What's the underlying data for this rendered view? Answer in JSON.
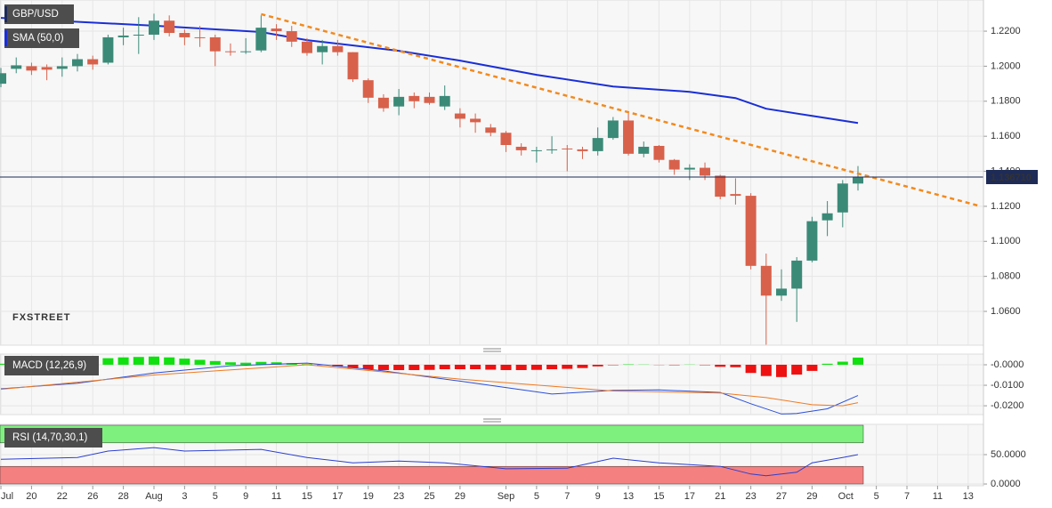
{
  "chart_data": [
    {
      "type": "candlestick",
      "title": "GBP/USD",
      "watermark": "FXSTREET",
      "up_color": "#3b8a78",
      "down_color": "#d8614b",
      "x": [
        0,
        1,
        2,
        3,
        4,
        5,
        6,
        7,
        8,
        9,
        10,
        11,
        12,
        13,
        14,
        15,
        16,
        17,
        18,
        19,
        20,
        21,
        22,
        23,
        24,
        25,
        26,
        27,
        28,
        29,
        30,
        31,
        32,
        33,
        34,
        35,
        36,
        37,
        38,
        39,
        40,
        41,
        42,
        43,
        44,
        45,
        46,
        47,
        48,
        49,
        50,
        51,
        52,
        53,
        54,
        55,
        56
      ],
      "open": [
        1.19,
        1.1985,
        1.2,
        1.1995,
        1.1985,
        1.2,
        1.204,
        1.202,
        1.2165,
        1.2175,
        1.218,
        1.226,
        1.219,
        1.2165,
        1.2165,
        1.2085,
        1.208,
        1.209,
        1.2215,
        1.22,
        1.214,
        1.208,
        1.2115,
        1.208,
        1.192,
        1.182,
        1.177,
        1.183,
        1.1825,
        1.177,
        1.173,
        1.17,
        1.165,
        1.162,
        1.154,
        1.1515,
        1.152,
        1.153,
        1.1525,
        1.1515,
        1.159,
        1.169,
        1.15,
        1.1545,
        1.1465,
        1.141,
        1.142,
        1.1375,
        1.127,
        1.126,
        1.086,
        1.069,
        1.073,
        1.089,
        1.112,
        1.1165,
        1.133
      ],
      "high": [
        1.199,
        1.205,
        1.202,
        1.201,
        1.205,
        1.207,
        1.206,
        1.218,
        1.222,
        1.228,
        1.23,
        1.229,
        1.221,
        1.223,
        1.218,
        1.213,
        1.216,
        1.229,
        1.224,
        1.223,
        1.216,
        1.215,
        1.215,
        1.208,
        1.193,
        1.184,
        1.187,
        1.185,
        1.185,
        1.189,
        1.176,
        1.173,
        1.167,
        1.163,
        1.156,
        1.154,
        1.16,
        1.155,
        1.154,
        1.165,
        1.171,
        1.174,
        1.157,
        1.155,
        1.147,
        1.144,
        1.145,
        1.138,
        1.136,
        1.1275,
        1.093,
        1.084,
        1.091,
        1.114,
        1.123,
        1.135,
        1.143
      ],
      "low": [
        1.188,
        1.196,
        1.195,
        1.192,
        1.194,
        1.197,
        1.198,
        1.201,
        1.212,
        1.207,
        1.215,
        1.217,
        1.212,
        1.211,
        1.2,
        1.206,
        1.207,
        1.208,
        1.215,
        1.211,
        1.206,
        1.201,
        1.206,
        1.191,
        1.179,
        1.174,
        1.172,
        1.176,
        1.178,
        1.175,
        1.165,
        1.162,
        1.16,
        1.151,
        1.149,
        1.145,
        1.15,
        1.14,
        1.147,
        1.149,
        1.158,
        1.149,
        1.148,
        1.145,
        1.138,
        1.135,
        1.135,
        1.124,
        1.121,
        1.084,
        1.041,
        1.066,
        1.054,
        1.088,
        1.103,
        1.108,
        1.129
      ],
      "close": [
        1.196,
        1.2005,
        1.1975,
        1.198,
        1.2,
        1.204,
        1.201,
        1.2165,
        1.2175,
        1.218,
        1.226,
        1.219,
        1.2165,
        1.216,
        1.2085,
        1.208,
        1.2085,
        1.222,
        1.22,
        1.214,
        1.2075,
        1.2115,
        1.208,
        1.1925,
        1.182,
        1.176,
        1.1825,
        1.18,
        1.179,
        1.183,
        1.17,
        1.168,
        1.162,
        1.155,
        1.152,
        1.152,
        1.1525,
        1.1525,
        1.1515,
        1.159,
        1.169,
        1.15,
        1.154,
        1.1465,
        1.141,
        1.142,
        1.1375,
        1.1255,
        1.126,
        1.086,
        1.069,
        1.073,
        1.089,
        1.1115,
        1.116,
        1.133,
        1.1367
      ],
      "sma": {
        "label": "SMA (50,0)",
        "color": "#1a2fd6",
        "x": [
          0,
          10,
          17,
          20,
          26,
          30,
          35,
          40,
          45,
          48,
          50,
          53,
          56
        ],
        "values": [
          1.2276,
          1.2231,
          1.2195,
          1.2149,
          1.2088,
          1.2032,
          1.1951,
          1.1884,
          1.1854,
          1.1818,
          1.1757,
          1.1716,
          1.1676
        ]
      },
      "trendline": {
        "color": "#f28a1e",
        "x": [
          17,
          63.9
        ],
        "values": [
          1.2297,
          1.1203
        ]
      },
      "last_price": {
        "value": 1.13671,
        "label": "1.136710",
        "color": "#1e2b57"
      },
      "xlim": [
        -0.06,
        64.2
      ],
      "ylim": [
        1.0407,
        1.2378
      ],
      "yticks": [
        {
          "value": 1.22,
          "label": "1.2200"
        },
        {
          "value": 1.2,
          "label": "1.2000"
        },
        {
          "value": 1.18,
          "label": "1.1800"
        },
        {
          "value": 1.16,
          "label": "1.1600"
        },
        {
          "value": 1.14,
          "label": "1.1400"
        },
        {
          "value": 1.12,
          "label": "1.1200"
        },
        {
          "value": 1.1,
          "label": "1.1000"
        },
        {
          "value": 1.08,
          "label": "1.0800"
        },
        {
          "value": 1.06,
          "label": "1.0600"
        }
      ]
    },
    {
      "type": "macd",
      "title": "MACD (12,26,9)",
      "up_color": "#10e010",
      "down_color": "#ee1111",
      "histogram": {
        "x": [
          0,
          1,
          2,
          3,
          4,
          5,
          6,
          7,
          8,
          9,
          10,
          11,
          12,
          13,
          14,
          15,
          16,
          17,
          18,
          19,
          20,
          21,
          22,
          23,
          24,
          25,
          26,
          27,
          28,
          29,
          30,
          31,
          32,
          33,
          34,
          35,
          36,
          37,
          38,
          39,
          40,
          41,
          42,
          43,
          44,
          45,
          46,
          47,
          48,
          49,
          50,
          51,
          52,
          53,
          54,
          55,
          56
        ],
        "values": [
          0.0005,
          0.0008,
          0.0012,
          0.0015,
          0.0018,
          0.0022,
          0.0026,
          0.0032,
          0.0036,
          0.0038,
          0.004,
          0.0036,
          0.003,
          0.0024,
          0.0018,
          0.0012,
          0.001,
          0.0014,
          0.0012,
          0.0008,
          0.0003,
          -0.0002,
          -0.0008,
          -0.0016,
          -0.0022,
          -0.0026,
          -0.0026,
          -0.0026,
          -0.0025,
          -0.0022,
          -0.0022,
          -0.0022,
          -0.0024,
          -0.0026,
          -0.0026,
          -0.0025,
          -0.0022,
          -0.002,
          -0.0016,
          -0.0008,
          -0.0002,
          0.0002,
          0.0001,
          -0.0001,
          -0.0002,
          0.0001,
          -0.0002,
          -0.001,
          -0.0012,
          -0.004,
          -0.0055,
          -0.006,
          -0.0048,
          -0.003,
          0.0005,
          0.0015,
          0.0035
        ]
      },
      "lines": [
        {
          "color": "#2b4fd8",
          "x": [
            0,
            5,
            10,
            15,
            20,
            25,
            30,
            36,
            40,
            43,
            47,
            49,
            51,
            52,
            54,
            56
          ],
          "values": [
            -0.0117,
            -0.009,
            -0.004,
            -0.0005,
            0.0008,
            -0.003,
            -0.008,
            -0.0143,
            -0.0125,
            -0.0123,
            -0.0135,
            -0.019,
            -0.024,
            -0.0238,
            -0.0215,
            -0.015
          ]
        },
        {
          "color": "#f07a20",
          "x": [
            0,
            10,
            20,
            30,
            40,
            47,
            50,
            53,
            55,
            56
          ],
          "values": [
            -0.012,
            -0.005,
            0.0,
            -0.007,
            -0.0128,
            -0.0138,
            -0.016,
            -0.0195,
            -0.02,
            -0.0185
          ]
        }
      ],
      "xlim": [
        -0.06,
        64.2
      ],
      "ylim": [
        -0.0243,
        0.0052
      ],
      "yticks": [
        {
          "value": 0,
          "label": "-0.0000"
        },
        {
          "value": -0.01,
          "label": "-0.0100"
        },
        {
          "value": -0.02,
          "label": "-0.0200"
        }
      ]
    },
    {
      "type": "rsi",
      "title": "RSI (14,70,30,1)",
      "bands": [
        {
          "from": 70,
          "to": 100,
          "color": "#7ef07e"
        },
        {
          "from": 0,
          "to": 30,
          "color": "#f58080"
        }
      ],
      "line": {
        "color": "#2b3fd0",
        "x": [
          0,
          5,
          7,
          10,
          12,
          17,
          20,
          23,
          26,
          29,
          33,
          37,
          40,
          43,
          47,
          49,
          50,
          52,
          53,
          55,
          56
        ],
        "values": [
          42,
          45,
          56,
          62,
          56,
          59,
          45,
          36,
          39,
          36,
          26,
          27,
          44,
          36,
          30,
          17,
          14,
          20,
          36,
          45,
          50
        ]
      },
      "xlim": [
        -0.06,
        64.2
      ],
      "ylim": [
        -3,
        101.5
      ],
      "yticks": [
        {
          "value": 50,
          "label": "50.0000"
        },
        {
          "value": 0,
          "label": "0.0000"
        }
      ],
      "xticks": [
        {
          "value": 0,
          "label": "Jul"
        },
        {
          "value": 2,
          "label": "20"
        },
        {
          "value": 4,
          "label": "22"
        },
        {
          "value": 6,
          "label": "26"
        },
        {
          "value": 8,
          "label": "28"
        },
        {
          "value": 10,
          "label": "Aug"
        },
        {
          "value": 12,
          "label": "3"
        },
        {
          "value": 14,
          "label": "5"
        },
        {
          "value": 16,
          "label": "9"
        },
        {
          "value": 18,
          "label": "11"
        },
        {
          "value": 20,
          "label": "15"
        },
        {
          "value": 22,
          "label": "17"
        },
        {
          "value": 24,
          "label": "19"
        },
        {
          "value": 26,
          "label": "23"
        },
        {
          "value": 28,
          "label": "25"
        },
        {
          "value": 30,
          "label": "29"
        },
        {
          "value": 33,
          "label": "Sep"
        },
        {
          "value": 35,
          "label": "5"
        },
        {
          "value": 37,
          "label": "7"
        },
        {
          "value": 39,
          "label": "9"
        },
        {
          "value": 41,
          "label": "13"
        },
        {
          "value": 43,
          "label": "15"
        },
        {
          "value": 45,
          "label": "17"
        },
        {
          "value": 47,
          "label": "21"
        },
        {
          "value": 49,
          "label": "23"
        },
        {
          "value": 51,
          "label": "27"
        },
        {
          "value": 53,
          "label": "29"
        },
        {
          "value": 55.2,
          "label": "Oct"
        },
        {
          "value": 57.2,
          "label": "5"
        },
        {
          "value": 59.2,
          "label": "7"
        },
        {
          "value": 61.2,
          "label": "11"
        },
        {
          "value": 63.2,
          "label": "13"
        }
      ]
    }
  ]
}
